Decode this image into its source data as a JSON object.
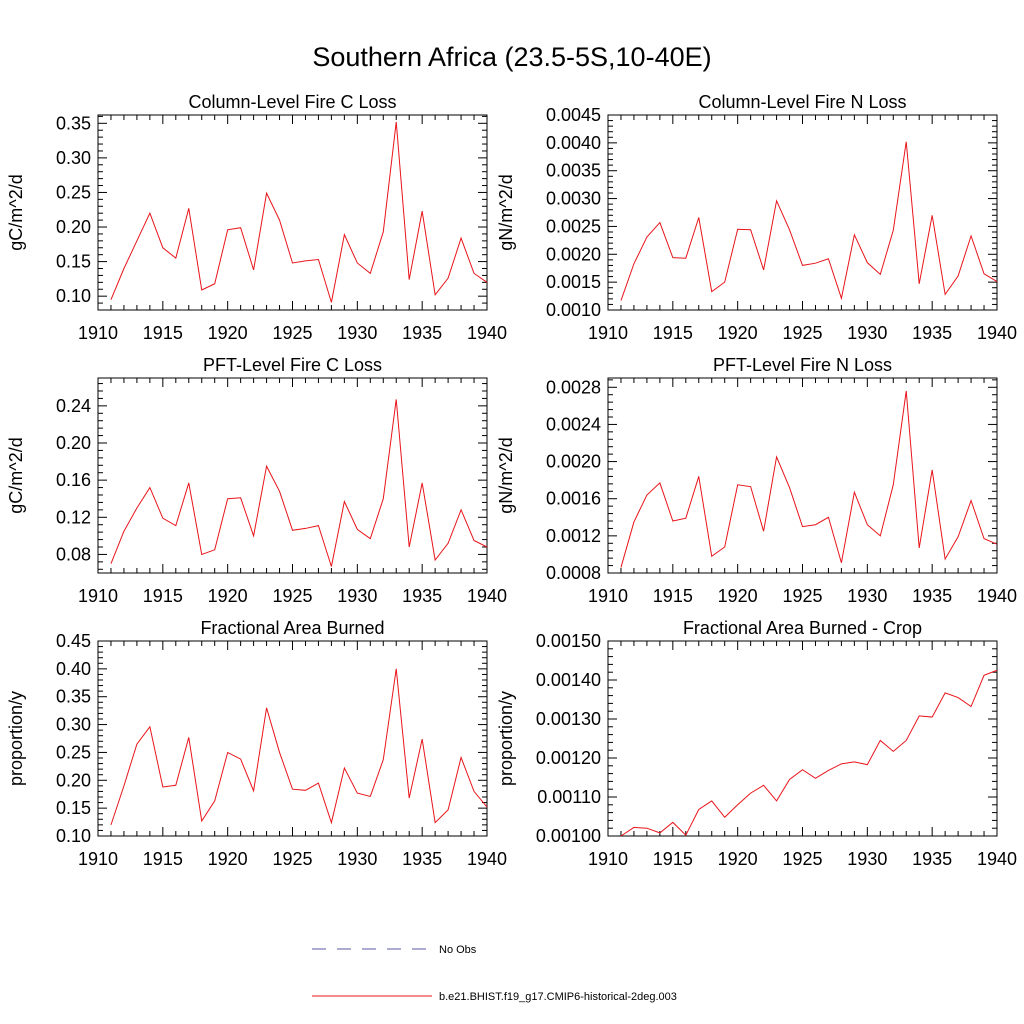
{
  "figure": {
    "title": "Southern Africa (23.5-5S,10-40E)",
    "line_color": "#e8141a",
    "obs_color": "#5a5aa0"
  },
  "legend": {
    "obs_label": "No Obs",
    "model_label": "b.e21.BHIST.f19_g17.CMIP6-historical-2deg.003"
  },
  "chart_data": [
    {
      "type": "line",
      "title": "Column-Level Fire C Loss",
      "ylabel": "gC/m^2/d",
      "xlabel": "",
      "xlim": [
        1910,
        1940
      ],
      "ylim": [
        0.08,
        0.362
      ],
      "xticks": [
        1910,
        1915,
        1920,
        1925,
        1930,
        1935,
        1940
      ],
      "xtick_labels": [
        "1910",
        "1915",
        "1920",
        "1925",
        "1930",
        "1935",
        "1940"
      ],
      "yticks": [
        0.1,
        0.15,
        0.2,
        0.25,
        0.3,
        0.35
      ],
      "ytick_labels": [
        "0.10",
        "0.15",
        "0.20",
        "0.25",
        "0.30",
        "0.35"
      ],
      "x": [
        1911,
        1912,
        1913,
        1914,
        1915,
        1916,
        1917,
        1918,
        1919,
        1920,
        1921,
        1922,
        1923,
        1924,
        1925,
        1926,
        1927,
        1928,
        1929,
        1930,
        1931,
        1932,
        1933,
        1934,
        1935,
        1936,
        1937,
        1938,
        1939,
        1940
      ],
      "series": [
        {
          "values": [
            0.095,
            0.14,
            0.18,
            0.22,
            0.17,
            0.155,
            0.227,
            0.109,
            0.118,
            0.196,
            0.199,
            0.138,
            0.249,
            0.21,
            0.148,
            0.151,
            0.153,
            0.091,
            0.189,
            0.148,
            0.133,
            0.193,
            0.352,
            0.124,
            0.223,
            0.102,
            0.126,
            0.184,
            0.133,
            0.12
          ]
        }
      ]
    },
    {
      "type": "line",
      "title": "Column-Level Fire N Loss",
      "ylabel": "gN/m^2/d",
      "xlabel": "",
      "xlim": [
        1910,
        1940
      ],
      "ylim": [
        0.001,
        0.0045
      ],
      "xticks": [
        1910,
        1915,
        1920,
        1925,
        1930,
        1935,
        1940
      ],
      "xtick_labels": [
        "1910",
        "1915",
        "1920",
        "1925",
        "1930",
        "1935",
        "1940"
      ],
      "yticks": [
        0.001,
        0.0015,
        0.002,
        0.0025,
        0.003,
        0.0035,
        0.004,
        0.0045
      ],
      "ytick_labels": [
        "0.0010",
        "0.0015",
        "0.0020",
        "0.0025",
        "0.0030",
        "0.0035",
        "0.0040",
        "0.0045"
      ],
      "x": [
        1911,
        1912,
        1913,
        1914,
        1915,
        1916,
        1917,
        1918,
        1919,
        1920,
        1921,
        1922,
        1923,
        1924,
        1925,
        1926,
        1927,
        1928,
        1929,
        1930,
        1931,
        1932,
        1933,
        1934,
        1935,
        1936,
        1937,
        1938,
        1939,
        1940
      ],
      "series": [
        {
          "values": [
            0.00117,
            0.00183,
            0.00231,
            0.00257,
            0.00194,
            0.00193,
            0.00266,
            0.00133,
            0.0015,
            0.00245,
            0.00244,
            0.00172,
            0.00296,
            0.00244,
            0.0018,
            0.00184,
            0.00192,
            0.00121,
            0.00235,
            0.00185,
            0.00164,
            0.00243,
            0.00402,
            0.00147,
            0.0027,
            0.00128,
            0.00161,
            0.00233,
            0.00165,
            0.00151
          ]
        }
      ]
    },
    {
      "type": "line",
      "title": "PFT-Level Fire C Loss",
      "ylabel": "gC/m^2/d",
      "xlabel": "",
      "xlim": [
        1910,
        1940
      ],
      "ylim": [
        0.06,
        0.27
      ],
      "xticks": [
        1910,
        1915,
        1920,
        1925,
        1930,
        1935,
        1940
      ],
      "xtick_labels": [
        "1910",
        "1915",
        "1920",
        "1925",
        "1930",
        "1935",
        "1940"
      ],
      "yticks": [
        0.08,
        0.12,
        0.16,
        0.2,
        0.24
      ],
      "ytick_labels": [
        "0.08",
        "0.12",
        "0.16",
        "0.20",
        "0.24"
      ],
      "x": [
        1911,
        1912,
        1913,
        1914,
        1915,
        1916,
        1917,
        1918,
        1919,
        1920,
        1921,
        1922,
        1923,
        1924,
        1925,
        1926,
        1927,
        1928,
        1929,
        1930,
        1931,
        1932,
        1933,
        1934,
        1935,
        1936,
        1937,
        1938,
        1939,
        1940
      ],
      "series": [
        {
          "values": [
            0.07,
            0.105,
            0.13,
            0.152,
            0.119,
            0.111,
            0.157,
            0.08,
            0.085,
            0.14,
            0.141,
            0.1,
            0.175,
            0.148,
            0.106,
            0.108,
            0.111,
            0.067,
            0.137,
            0.107,
            0.097,
            0.14,
            0.247,
            0.088,
            0.157,
            0.074,
            0.092,
            0.128,
            0.095,
            0.088
          ]
        }
      ]
    },
    {
      "type": "line",
      "title": "PFT-Level Fire N Loss",
      "ylabel": "gN/m^2/d",
      "xlabel": "",
      "xlim": [
        1910,
        1940
      ],
      "ylim": [
        0.0008,
        0.0029
      ],
      "xticks": [
        1910,
        1915,
        1920,
        1925,
        1930,
        1935,
        1940
      ],
      "xtick_labels": [
        "1910",
        "1915",
        "1920",
        "1925",
        "1930",
        "1935",
        "1940"
      ],
      "yticks": [
        0.0008,
        0.0012,
        0.0016,
        0.002,
        0.0024,
        0.0028
      ],
      "ytick_labels": [
        "0.0008",
        "0.0012",
        "0.0016",
        "0.0020",
        "0.0024",
        "0.0028"
      ],
      "x": [
        1911,
        1912,
        1913,
        1914,
        1915,
        1916,
        1917,
        1918,
        1919,
        1920,
        1921,
        1922,
        1923,
        1924,
        1925,
        1926,
        1927,
        1928,
        1929,
        1930,
        1931,
        1932,
        1933,
        1934,
        1935,
        1936,
        1937,
        1938,
        1939,
        1940
      ],
      "series": [
        {
          "values": [
            0.00086,
            0.00135,
            0.00164,
            0.00177,
            0.00136,
            0.00139,
            0.00184,
            0.00098,
            0.00108,
            0.00175,
            0.00173,
            0.00125,
            0.00205,
            0.00172,
            0.0013,
            0.00132,
            0.0014,
            0.00091,
            0.00167,
            0.00132,
            0.0012,
            0.00175,
            0.00276,
            0.00107,
            0.00191,
            0.00095,
            0.00119,
            0.00158,
            0.00117,
            0.00111
          ]
        }
      ]
    },
    {
      "type": "line",
      "title": "Fractional Area Burned",
      "ylabel": "proportion/y",
      "xlabel": "",
      "xlim": [
        1910,
        1940
      ],
      "ylim": [
        0.1,
        0.45
      ],
      "xticks": [
        1910,
        1915,
        1920,
        1925,
        1930,
        1935,
        1940
      ],
      "xtick_labels": [
        "1910",
        "1915",
        "1920",
        "1925",
        "1930",
        "1935",
        "1940"
      ],
      "yticks": [
        0.1,
        0.15,
        0.2,
        0.25,
        0.3,
        0.35,
        0.4,
        0.45
      ],
      "ytick_labels": [
        "0.10",
        "0.15",
        "0.20",
        "0.25",
        "0.30",
        "0.35",
        "0.40",
        "0.45"
      ],
      "x": [
        1911,
        1912,
        1913,
        1914,
        1915,
        1916,
        1917,
        1918,
        1919,
        1920,
        1921,
        1922,
        1923,
        1924,
        1925,
        1926,
        1927,
        1928,
        1929,
        1930,
        1931,
        1932,
        1933,
        1934,
        1935,
        1936,
        1937,
        1938,
        1939,
        1940
      ],
      "series": [
        {
          "values": [
            0.12,
            0.19,
            0.265,
            0.296,
            0.188,
            0.191,
            0.277,
            0.127,
            0.163,
            0.25,
            0.238,
            0.181,
            0.33,
            0.25,
            0.184,
            0.182,
            0.195,
            0.124,
            0.222,
            0.177,
            0.171,
            0.237,
            0.4,
            0.168,
            0.274,
            0.124,
            0.147,
            0.241,
            0.18,
            0.152
          ]
        }
      ]
    },
    {
      "type": "line",
      "title": "Fractional Area Burned - Crop",
      "ylabel": "proportion/y",
      "xlabel": "",
      "xlim": [
        1910,
        1940
      ],
      "ylim": [
        0.001,
        0.0015
      ],
      "xticks": [
        1910,
        1915,
        1920,
        1925,
        1930,
        1935,
        1940
      ],
      "xtick_labels": [
        "1910",
        "1915",
        "1920",
        "1925",
        "1930",
        "1935",
        "1940"
      ],
      "yticks": [
        0.001,
        0.0011,
        0.0012,
        0.0013,
        0.0014,
        0.0015
      ],
      "ytick_labels": [
        "0.00100",
        "0.00110",
        "0.00120",
        "0.00130",
        "0.00140",
        "0.00150"
      ],
      "x": [
        1911,
        1912,
        1913,
        1914,
        1915,
        1916,
        1917,
        1918,
        1919,
        1920,
        1921,
        1922,
        1923,
        1924,
        1925,
        1926,
        1927,
        1928,
        1929,
        1930,
        1931,
        1932,
        1933,
        1934,
        1935,
        1936,
        1937,
        1938,
        1939,
        1940
      ],
      "series": [
        {
          "values": [
            0.001,
            0.001022,
            0.00102,
            0.001008,
            0.001035,
            0.001002,
            0.001068,
            0.00109,
            0.001048,
            0.00108,
            0.00111,
            0.00113,
            0.00109,
            0.001145,
            0.00117,
            0.001148,
            0.001168,
            0.001185,
            0.00119,
            0.001183,
            0.001245,
            0.001217,
            0.001245,
            0.001308,
            0.001305,
            0.001367,
            0.001355,
            0.001332,
            0.001412,
            0.001425
          ]
        }
      ]
    }
  ]
}
